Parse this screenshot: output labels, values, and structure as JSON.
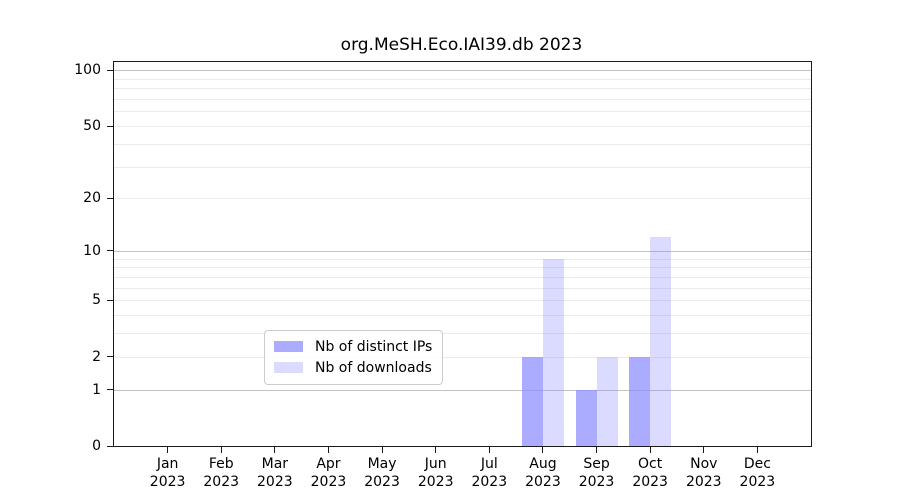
{
  "figure": {
    "background": "#ffffff"
  },
  "chart_data": {
    "type": "bar",
    "title": "org.MeSH.Eco.IAI39.db 2023",
    "x_months": [
      "Jan",
      "Feb",
      "Mar",
      "Apr",
      "May",
      "Jun",
      "Jul",
      "Aug",
      "Sep",
      "Oct",
      "Nov",
      "Dec"
    ],
    "x_year": "2023",
    "series": [
      {
        "name": "Nb of distinct IPs",
        "color": "rgba(136,136,255,0.71)",
        "values": [
          0,
          0,
          0,
          0,
          0,
          0,
          0,
          2,
          1,
          2,
          0,
          0
        ]
      },
      {
        "name": "Nb of downloads",
        "color": "rgba(136,136,255,0.30)",
        "values": [
          0,
          0,
          0,
          0,
          0,
          0,
          0,
          9,
          2,
          12,
          0,
          0
        ]
      }
    ],
    "yscale": "log1p",
    "ylim": [
      0,
      111
    ],
    "yticks_labeled": [
      100,
      50,
      20,
      10,
      5,
      2,
      1,
      0
    ],
    "gridlines_major": [
      1,
      10,
      100
    ],
    "gridlines_minor": [
      2,
      3,
      4,
      5,
      6,
      7,
      8,
      9,
      20,
      30,
      40,
      50,
      60,
      70,
      80,
      90
    ],
    "grid": "horizontal",
    "legend": {
      "position": "lower-center-inside",
      "entries": [
        "Nb of distinct IPs",
        "Nb of downloads"
      ]
    },
    "colors": {
      "bar_distinct_ips": "rgba(136,136,255,0.71)",
      "bar_downloads": "rgba(136,136,255,0.30)",
      "grid_major": "#c3c3c3",
      "grid_minor": "#ebebeb",
      "spine": "#1a1a1a",
      "text": "#000000"
    }
  }
}
